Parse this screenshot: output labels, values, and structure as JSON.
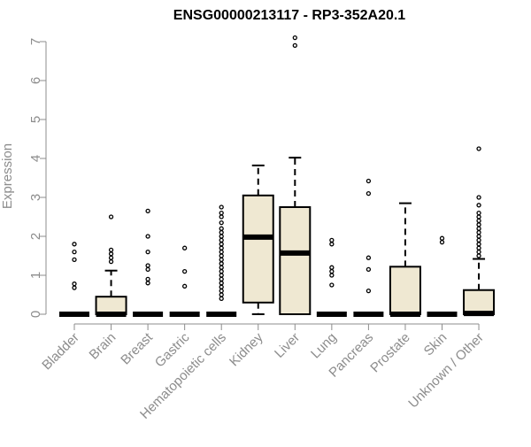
{
  "chart_data": {
    "type": "boxplot",
    "title": "ENSG00000213117 - RP3-352A20.1",
    "xlabel": "",
    "ylabel": "Expression",
    "ylim": [
      0,
      7
    ],
    "yticks": [
      0,
      1,
      2,
      3,
      4,
      5,
      6,
      7
    ],
    "grid": false,
    "colors": {
      "box_fill": "#efe8d2",
      "stroke": "#000000",
      "axis": "#8c8c8c"
    },
    "categories": [
      "Bladder",
      "Brain",
      "Breast",
      "Gastric",
      "Hematopoietic cells",
      "Kidney",
      "Liver",
      "Lung",
      "Pancreas",
      "Prostate",
      "Skin",
      "Unknown / Other"
    ],
    "boxes": [
      {
        "q1": 0,
        "median": 0,
        "q3": 0,
        "whisker_low": 0,
        "whisker_high": 0,
        "outliers": [
          0.68,
          0.78,
          1.4,
          1.6,
          1.8
        ]
      },
      {
        "q1": 0,
        "median": 0,
        "q3": 0.45,
        "whisker_low": 0,
        "whisker_high": 1.12,
        "outliers": [
          1.35,
          1.45,
          1.55,
          1.65,
          2.5
        ]
      },
      {
        "q1": 0,
        "median": 0,
        "q3": 0,
        "whisker_low": 0,
        "whisker_high": 0,
        "outliers": [
          0.8,
          0.9,
          1.15,
          1.25,
          1.6,
          2.0,
          2.65
        ]
      },
      {
        "q1": 0,
        "median": 0,
        "q3": 0,
        "whisker_low": 0,
        "whisker_high": 0,
        "outliers": [
          0.72,
          1.1,
          1.7
        ]
      },
      {
        "q1": 0,
        "median": 0,
        "q3": 0,
        "whisker_low": 0,
        "whisker_high": 0,
        "outliers": [
          0.4,
          0.5,
          0.6,
          0.7,
          0.8,
          0.9,
          1.0,
          1.1,
          1.2,
          1.3,
          1.4,
          1.5,
          1.6,
          1.7,
          1.8,
          1.9,
          2.0,
          2.1,
          2.2,
          2.35,
          2.5,
          2.6,
          2.75
        ]
      },
      {
        "q1": 0.3,
        "median": 1.98,
        "q3": 3.05,
        "whisker_low": 0,
        "whisker_high": 3.82,
        "outliers": []
      },
      {
        "q1": 0,
        "median": 1.57,
        "q3": 2.75,
        "whisker_low": 0,
        "whisker_high": 4.02,
        "outliers": [
          6.9,
          7.1
        ]
      },
      {
        "q1": 0,
        "median": 0,
        "q3": 0,
        "whisker_low": 0,
        "whisker_high": 0,
        "outliers": [
          0.75,
          1.0,
          1.1,
          1.2,
          1.8,
          1.9
        ]
      },
      {
        "q1": 0,
        "median": 0,
        "q3": 0,
        "whisker_low": 0,
        "whisker_high": 0,
        "outliers": [
          0.6,
          1.15,
          1.45,
          3.1,
          3.42
        ]
      },
      {
        "q1": 0,
        "median": 0,
        "q3": 1.22,
        "whisker_low": 0,
        "whisker_high": 2.85,
        "outliers": []
      },
      {
        "q1": 0,
        "median": 0,
        "q3": 0,
        "whisker_low": 0,
        "whisker_high": 0,
        "outliers": [
          1.85,
          1.95
        ]
      },
      {
        "q1": 0,
        "median": 0.02,
        "q3": 0.62,
        "whisker_low": 0,
        "whisker_high": 1.42,
        "outliers": [
          1.5,
          1.6,
          1.7,
          1.8,
          1.9,
          2.0,
          2.1,
          2.2,
          2.3,
          2.4,
          2.5,
          2.6,
          2.8,
          3.0,
          4.25
        ]
      }
    ]
  }
}
